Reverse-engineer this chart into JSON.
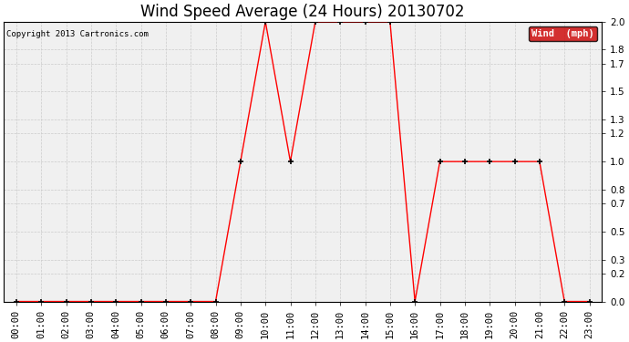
{
  "title": "Wind Speed Average (24 Hours) 20130702",
  "copyright": "Copyright 2013 Cartronics.com",
  "legend_label": "Wind  (mph)",
  "legend_bg": "#cc0000",
  "legend_text_color": "#ffffff",
  "x_labels": [
    "00:00",
    "01:00",
    "02:00",
    "03:00",
    "04:00",
    "05:00",
    "06:00",
    "07:00",
    "08:00",
    "09:00",
    "10:00",
    "11:00",
    "12:00",
    "13:00",
    "14:00",
    "15:00",
    "16:00",
    "17:00",
    "18:00",
    "19:00",
    "20:00",
    "21:00",
    "22:00",
    "23:00"
  ],
  "y_values": [
    0.0,
    0.0,
    0.0,
    0.0,
    0.0,
    0.0,
    0.0,
    0.0,
    0.0,
    1.0,
    2.0,
    1.0,
    2.0,
    2.0,
    2.0,
    2.0,
    0.0,
    1.0,
    1.0,
    1.0,
    1.0,
    1.0,
    0.0,
    0.0
  ],
  "line_color": "#ff0000",
  "marker_color": "#000000",
  "bg_color": "#ffffff",
  "plot_bg_color": "#f0f0f0",
  "grid_color": "#cccccc",
  "ylim": [
    0.0,
    2.0
  ],
  "yticks": [
    0.0,
    0.2,
    0.3,
    0.5,
    0.7,
    0.8,
    1.0,
    1.2,
    1.3,
    1.5,
    1.7,
    1.8,
    2.0
  ],
  "ytick_labels": [
    "0.0",
    "0.2",
    "0.3",
    "0.5",
    "0.7",
    "0.8",
    "1.0",
    "1.2",
    "1.3",
    "1.5",
    "1.7",
    "1.8",
    "2.0"
  ],
  "title_fontsize": 12,
  "tick_fontsize": 7.5,
  "fig_width": 6.9,
  "fig_height": 3.75,
  "dpi": 100
}
